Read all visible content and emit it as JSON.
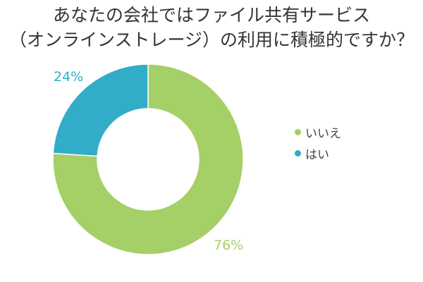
{
  "chart_data": {
    "type": "pie",
    "style": "donut",
    "title_lines": [
      "あなたの会社ではファイル共有サービス",
      "（オンラインストレージ）の利用に積極的ですか？"
    ],
    "slices": [
      {
        "name": "いいえ",
        "value": 76,
        "label": "76%",
        "color": "#a5cf67"
      },
      {
        "name": "はい",
        "value": 24,
        "label": "24%",
        "color": "#31adc8"
      }
    ],
    "legend_position": "right"
  }
}
